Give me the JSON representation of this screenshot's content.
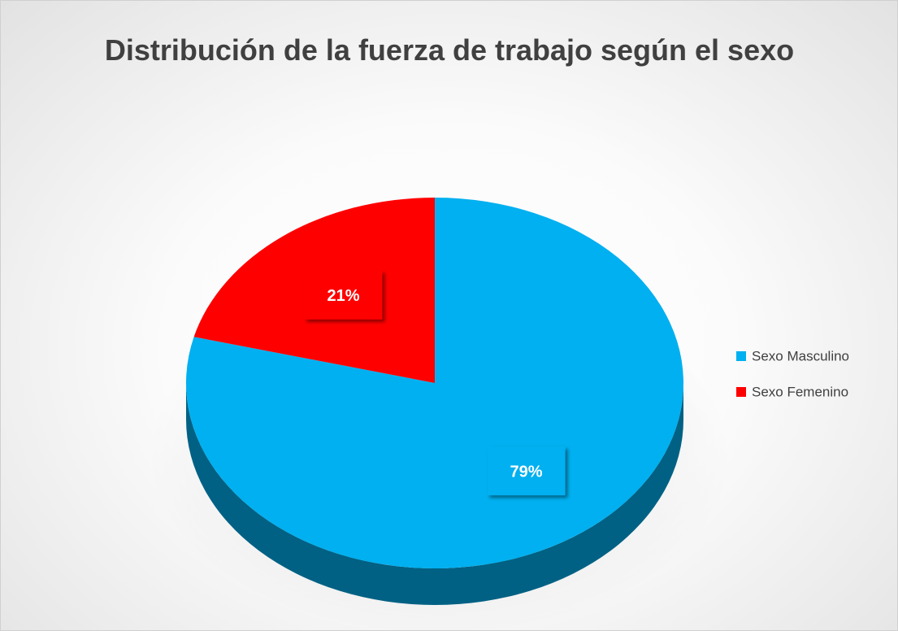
{
  "chart_data": {
    "type": "pie",
    "title": "Distribución de la fuerza de trabajo según el sexo",
    "categories": [
      "Sexo Masculino",
      "Sexo Femenino"
    ],
    "values": [
      79,
      21
    ],
    "value_labels": [
      "79%",
      "21%"
    ],
    "colors": [
      "#00b0f0",
      "#ff0000"
    ],
    "legend": "right"
  }
}
